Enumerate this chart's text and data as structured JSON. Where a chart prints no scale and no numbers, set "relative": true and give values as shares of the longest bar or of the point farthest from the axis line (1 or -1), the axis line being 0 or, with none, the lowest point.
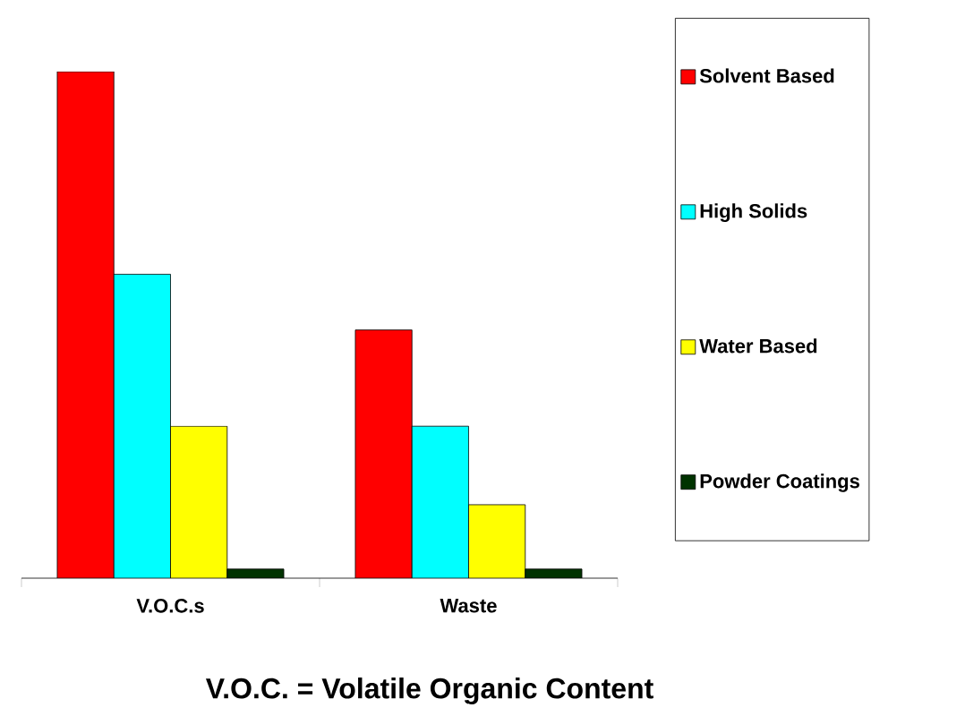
{
  "chart_data": {
    "type": "bar",
    "title": "V.O.C. = Volatile Organic Content",
    "categories": [
      "V.O.C.s",
      "Waste"
    ],
    "relative": true,
    "legend": "right",
    "series": [
      {
        "name": "Solvent Based",
        "color": "#ff0000",
        "values": [
          1,
          0.49
        ]
      },
      {
        "name": "High Solids",
        "color": "#00ffff",
        "values": [
          0.6,
          0.3
        ]
      },
      {
        "name": "Water Based",
        "color": "#ffff00",
        "values": [
          0.3,
          0.145
        ]
      },
      {
        "name": "Powder Coatings",
        "color": "#003300",
        "values": [
          0.018,
          0.018
        ]
      }
    ]
  }
}
